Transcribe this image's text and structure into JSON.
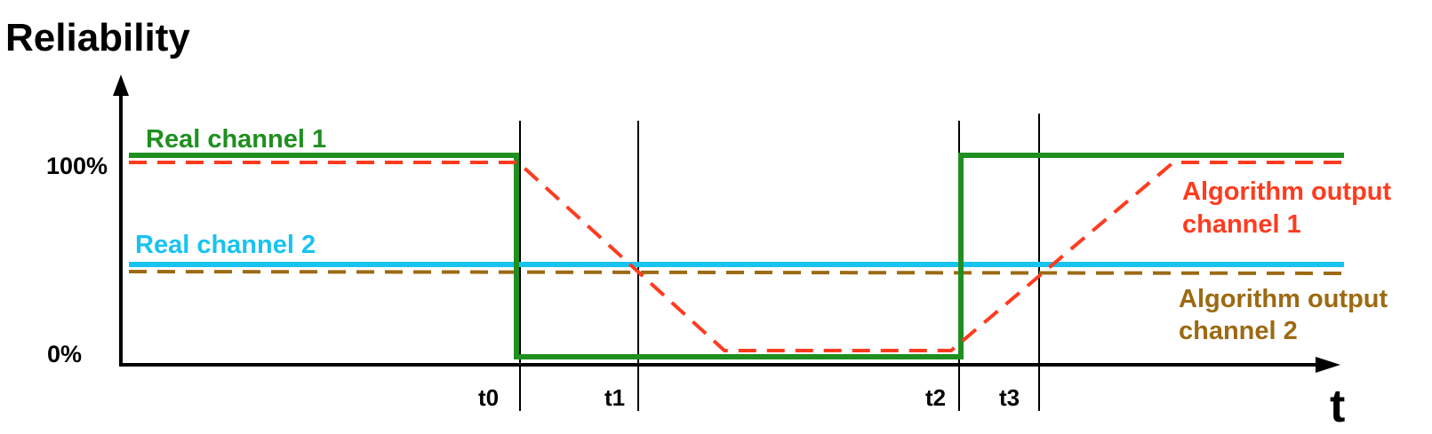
{
  "title": "Reliability",
  "x_axis_label": "t",
  "y_ticks": {
    "top": "100%",
    "bottom": "0%"
  },
  "time_markers": [
    "t0",
    "t1",
    "t2",
    "t3"
  ],
  "labels": {
    "real_channel_1": "Real channel 1",
    "real_channel_2": "Real channel 2",
    "algo_channel_1_line1": "Algorithm output",
    "algo_channel_1_line2": "channel 1",
    "algo_channel_2_line1": "Algorithm output",
    "algo_channel_2_line2": "channel 2"
  },
  "colors": {
    "real_channel_1": "#1f8f1f",
    "real_channel_2": "#19c3ef",
    "algo_channel_1": "#ff3b1f",
    "algo_channel_2": "#9c6a12",
    "axis": "#000000"
  }
}
